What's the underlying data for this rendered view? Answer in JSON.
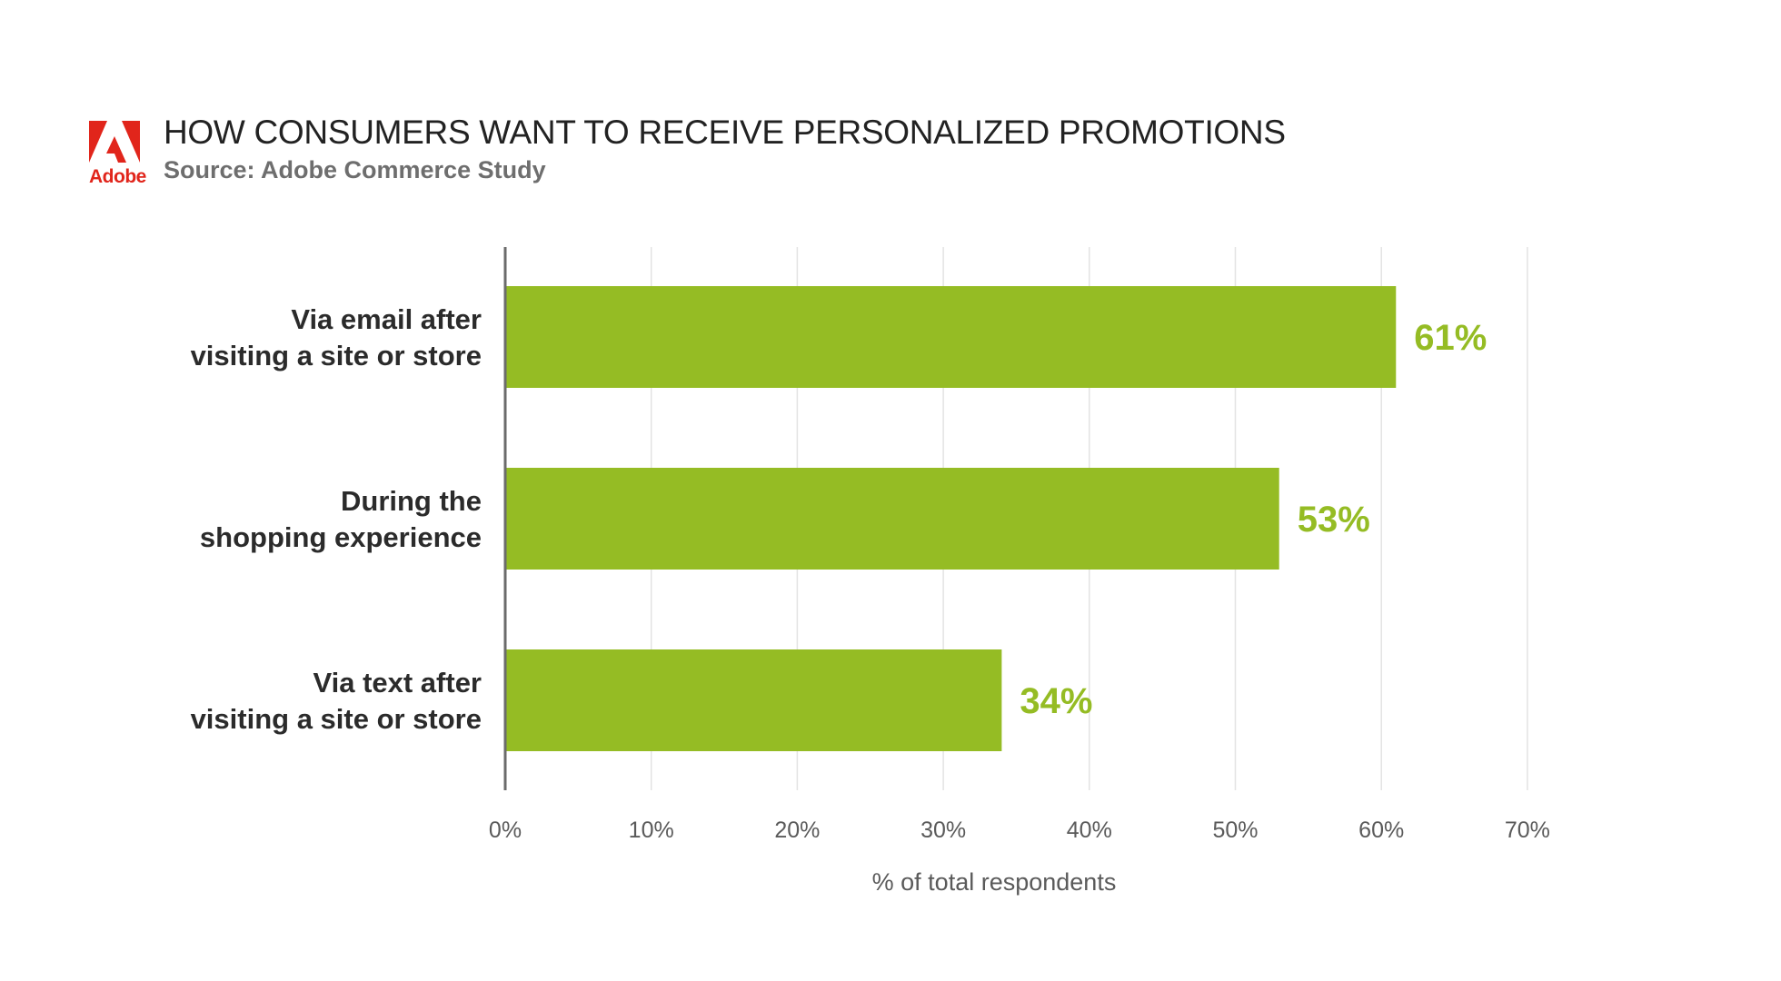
{
  "brand": {
    "logo_text": "Adobe",
    "logo_color": "#e1251b"
  },
  "header": {
    "title": "HOW CONSUMERS WANT TO RECEIVE PERSONALIZED PROMOTIONS",
    "subtitle": "Source: Adobe Commerce Study"
  },
  "chart_data": {
    "type": "bar",
    "orientation": "horizontal",
    "categories": [
      [
        "Via email after",
        "visiting a site or store"
      ],
      [
        "During the",
        "shopping experience"
      ],
      [
        "Via text after",
        "visiting a site or store"
      ]
    ],
    "values": [
      61,
      53,
      34
    ],
    "value_labels": [
      "61%",
      "53%",
      "34%"
    ],
    "xlabel": "% of total respondents",
    "xlim": [
      0,
      70
    ],
    "xticks": [
      0,
      10,
      20,
      30,
      40,
      50,
      60,
      70
    ],
    "xtick_labels": [
      "0%",
      "10%",
      "20%",
      "30%",
      "40%",
      "50%",
      "60%",
      "70%"
    ],
    "grid": "vertical",
    "legend": "none",
    "colors": {
      "bar": "#95bc24",
      "value_label": "#95bc24",
      "grid": "#e3e3e3",
      "axis": "#6b6b6b"
    }
  }
}
